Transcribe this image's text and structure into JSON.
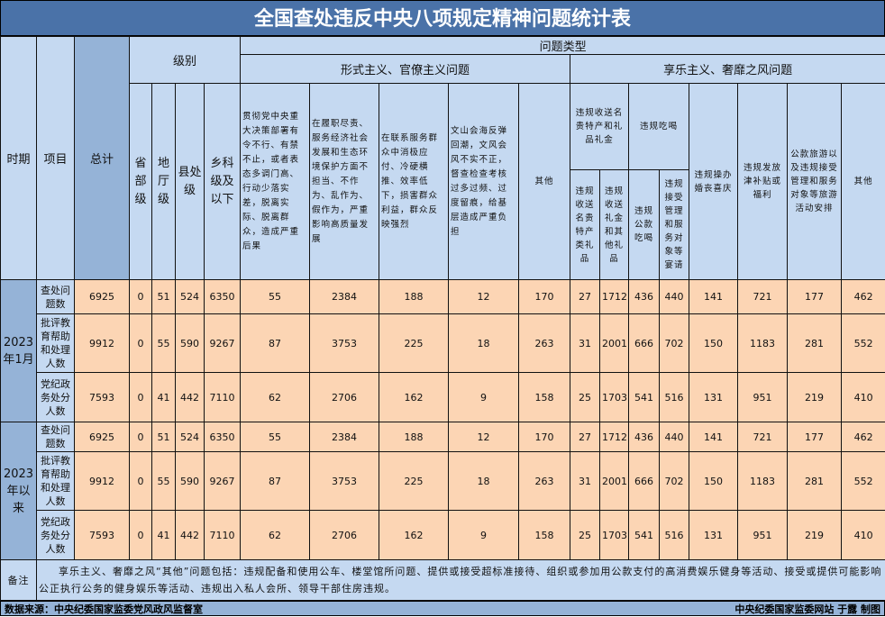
{
  "title": "全国查处违反中央八项规定精神问题统计表",
  "headers": {
    "period": "时期",
    "item": "项目",
    "total": "总计",
    "level": "级别",
    "problem_type": "问题类型",
    "levels": [
      "省部级",
      "地厅级",
      "县处级",
      "乡科级及以下"
    ],
    "formalism": "形式主义、官僚主义问题",
    "hedonism": "享乐主义、奢靡之风问题",
    "formalism_cols": [
      "贯彻党中央重大决策部署有令不行、有禁不止，或者表态多调门高、行动少落实差，脱离实际、脱离群众，造成严重后果",
      "在履职尽责、服务经济社会发展和生态环境保护方面不担当、不作为、乱作为、假作为，严重影响高质量发展",
      "在联系服务群众中消极应付、冷硬横推、效率低下，损害群众利益，群众反映强烈",
      "文山会海反弹回潮，文风会风不实不正，督查检查考核过多过频、过度留痕，给基层造成严重负担",
      "其他"
    ],
    "gift_group": "违规收送名贵特产和礼品礼金",
    "gift_cols": [
      "违规收送名贵特产类礼品",
      "违规收送礼金和其他礼品"
    ],
    "dining_group": "违规吃喝",
    "dining_cols": [
      "违规公款吃喝",
      "违规接受管理和服务对象等宴请"
    ],
    "hedonism_cols": [
      "违规操办婚丧喜庆",
      "违规发放津补贴或福利",
      "公款旅游以及违规接受管理和服务对象等旅游活动安排",
      "其他"
    ]
  },
  "periods": [
    {
      "label": "2023年1月",
      "rows": [
        {
          "item": "查处问题数",
          "values": [
            "6925",
            "0",
            "51",
            "524",
            "6350",
            "55",
            "2384",
            "188",
            "12",
            "170",
            "27",
            "1712",
            "436",
            "440",
            "141",
            "721",
            "177",
            "462"
          ]
        },
        {
          "item": "批评教育帮助和处理人数",
          "values": [
            "9912",
            "0",
            "55",
            "590",
            "9267",
            "87",
            "3753",
            "225",
            "18",
            "263",
            "31",
            "2001",
            "666",
            "702",
            "150",
            "1183",
            "281",
            "552"
          ]
        },
        {
          "item": "党纪政务处分人数",
          "values": [
            "7593",
            "0",
            "41",
            "442",
            "7110",
            "62",
            "2706",
            "162",
            "9",
            "158",
            "25",
            "1703",
            "541",
            "516",
            "131",
            "951",
            "219",
            "410"
          ]
        }
      ]
    },
    {
      "label": "2023年以来",
      "rows": [
        {
          "item": "查处问题数",
          "values": [
            "6925",
            "0",
            "51",
            "524",
            "6350",
            "55",
            "2384",
            "188",
            "12",
            "170",
            "27",
            "1712",
            "436",
            "440",
            "141",
            "721",
            "177",
            "462"
          ]
        },
        {
          "item": "批评教育帮助和处理人数",
          "values": [
            "9912",
            "0",
            "55",
            "590",
            "9267",
            "87",
            "3753",
            "225",
            "18",
            "263",
            "31",
            "2001",
            "666",
            "702",
            "150",
            "1183",
            "281",
            "552"
          ]
        },
        {
          "item": "党纪政务处分人数",
          "values": [
            "7593",
            "0",
            "41",
            "442",
            "7110",
            "62",
            "2706",
            "162",
            "9",
            "158",
            "25",
            "1703",
            "541",
            "516",
            "131",
            "951",
            "219",
            "410"
          ]
        }
      ]
    }
  ],
  "remark": {
    "label": "备注",
    "text": "享乐主义、奢靡之风“其他”问题包括：违规配备和使用公车、楼堂馆所问题、提供或接受超标准接待、组织或参加用公款支付的高消费娱乐健身等活动、接受或提供可能影响公正执行公务的健身娱乐等活动、违规出入私人会所、领导干部住房违规。"
  },
  "footer": {
    "source": "数据来源：中央纪委国家监委党风政风监督室",
    "credit": "中央纪委国家监委网站 于露 制图"
  },
  "colors": {
    "title_bg": "#4a72a8",
    "header_bg": "#c5d9f1",
    "side_bg": "#95b3d7",
    "data_bg": "#fcd5b4"
  }
}
